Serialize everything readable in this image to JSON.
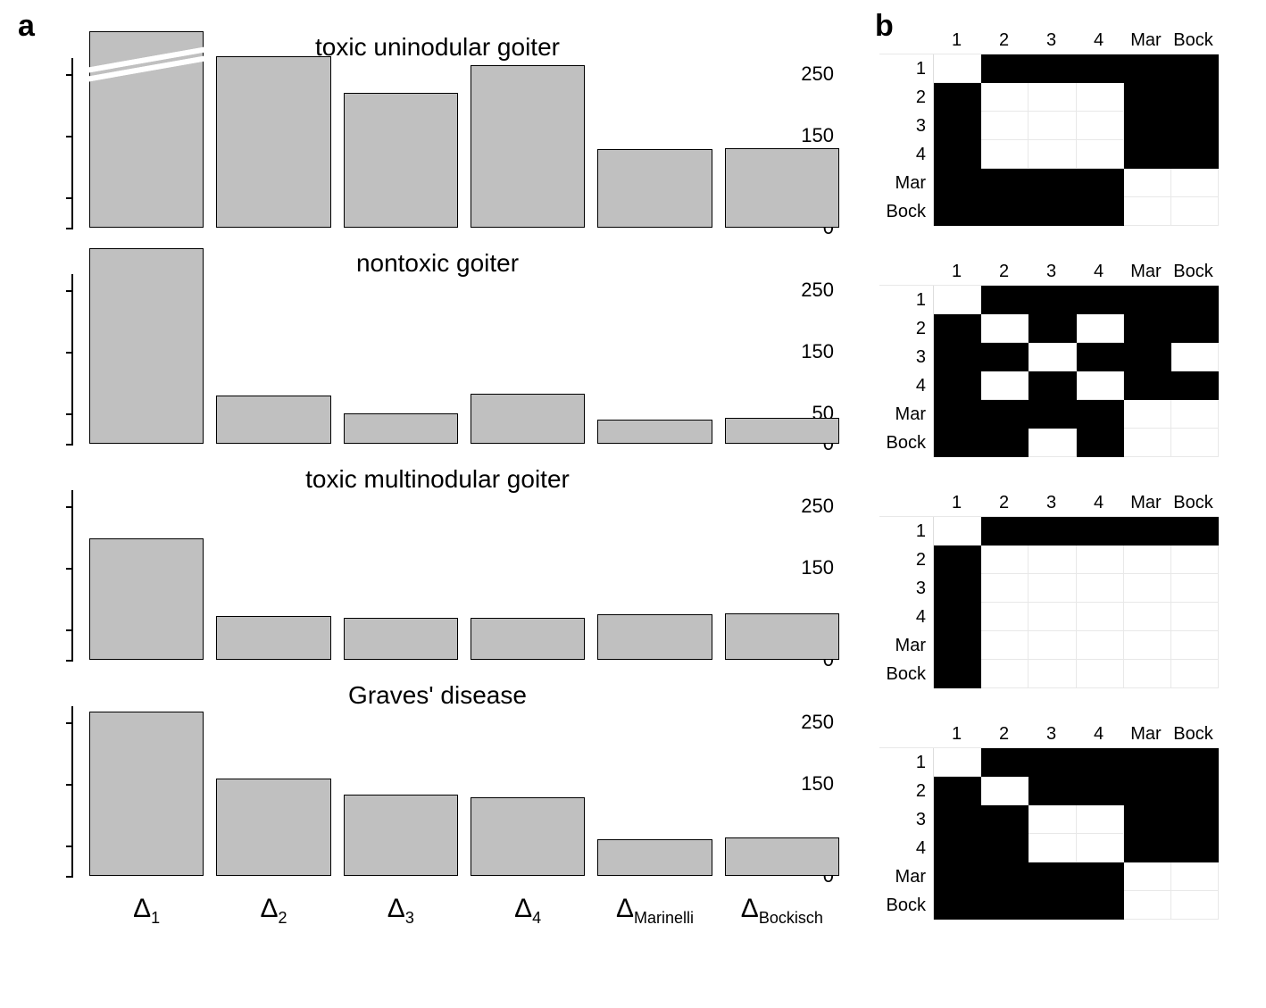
{
  "panel_a": {
    "label": "a",
    "title_fontsize": 28,
    "label_fontsize": 34,
    "axis_fontsize": 22,
    "bar_color": "#c0c0c0",
    "bar_border_color": "#000000",
    "background_color": "#ffffff",
    "ylim": [
      0,
      320
    ],
    "yticks": [
      0,
      50,
      150,
      250
    ],
    "x_labels": [
      "Δ_1",
      "Δ_2",
      "Δ_3",
      "Δ_4",
      "Δ_Marinelli",
      "Δ_Bockisch"
    ],
    "charts": [
      {
        "title": "toxic uninodular goiter",
        "values": [
          320,
          280,
          220,
          265,
          128,
          130
        ],
        "axis_break_first_bar": true
      },
      {
        "title": "nontoxic goiter",
        "values": [
          318,
          78,
          50,
          82,
          40,
          42
        ],
        "axis_break_first_bar": false
      },
      {
        "title": "toxic multinodular goiter",
        "values": [
          198,
          72,
          68,
          68,
          74,
          76
        ],
        "axis_break_first_bar": false
      },
      {
        "title": "Graves' disease",
        "values": [
          268,
          158,
          132,
          128,
          60,
          62
        ],
        "axis_break_first_bar": false
      }
    ]
  },
  "panel_b": {
    "label": "b",
    "label_fontsize": 34,
    "header_fontsize": 20,
    "cell_fill_color": "#000000",
    "cell_empty_color": "#ffffff",
    "grid_color": "#e8e8e8",
    "headers": [
      "1",
      "2",
      "3",
      "4",
      "Mar",
      "Bock"
    ],
    "row_headers": [
      "1",
      "2",
      "3",
      "4",
      "Mar",
      "Bock"
    ],
    "matrices": [
      [
        [
          0,
          1,
          1,
          1,
          1,
          1
        ],
        [
          1,
          0,
          0,
          0,
          1,
          1
        ],
        [
          1,
          0,
          0,
          0,
          1,
          1
        ],
        [
          1,
          0,
          0,
          0,
          1,
          1
        ],
        [
          1,
          1,
          1,
          1,
          0,
          0
        ],
        [
          1,
          1,
          1,
          1,
          0,
          0
        ]
      ],
      [
        [
          0,
          1,
          1,
          1,
          1,
          1
        ],
        [
          1,
          0,
          1,
          0,
          1,
          1
        ],
        [
          1,
          1,
          0,
          1,
          1,
          0
        ],
        [
          1,
          0,
          1,
          0,
          1,
          1
        ],
        [
          1,
          1,
          1,
          1,
          0,
          0
        ],
        [
          1,
          1,
          0,
          1,
          0,
          0
        ]
      ],
      [
        [
          0,
          1,
          1,
          1,
          1,
          1
        ],
        [
          1,
          0,
          0,
          0,
          0,
          0
        ],
        [
          1,
          0,
          0,
          0,
          0,
          0
        ],
        [
          1,
          0,
          0,
          0,
          0,
          0
        ],
        [
          1,
          0,
          0,
          0,
          0,
          0
        ],
        [
          1,
          0,
          0,
          0,
          0,
          0
        ]
      ],
      [
        [
          0,
          1,
          1,
          1,
          1,
          1
        ],
        [
          1,
          0,
          1,
          1,
          1,
          1
        ],
        [
          1,
          1,
          0,
          0,
          1,
          1
        ],
        [
          1,
          1,
          0,
          0,
          1,
          1
        ],
        [
          1,
          1,
          1,
          1,
          0,
          0
        ],
        [
          1,
          1,
          1,
          1,
          0,
          0
        ]
      ]
    ]
  }
}
